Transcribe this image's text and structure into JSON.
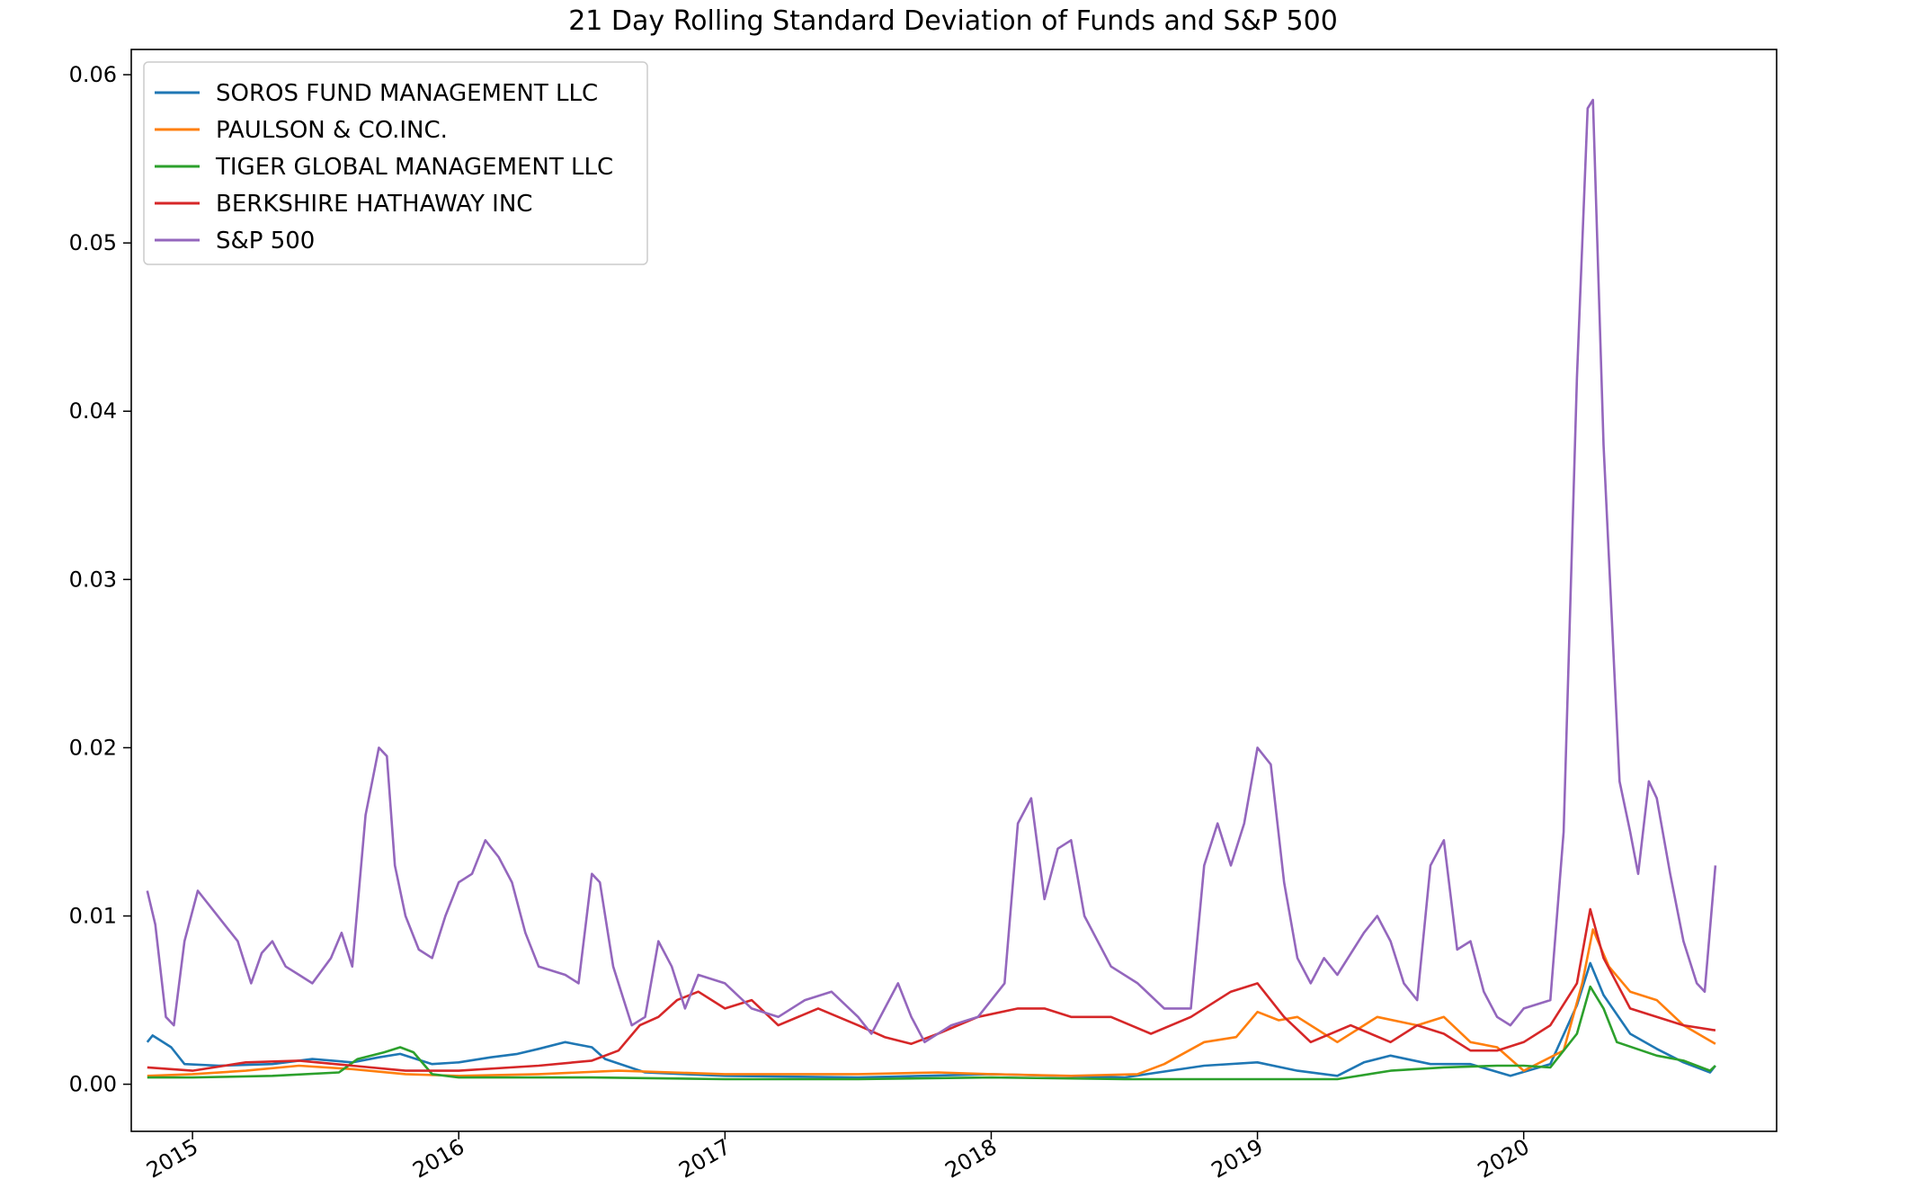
{
  "chart_data": {
    "type": "line",
    "title": "21 Day Rolling Standard Deviation of Funds and S&P 500",
    "xlabel": "",
    "ylabel": "",
    "x_ticks": [
      "2015",
      "2016",
      "2017",
      "2018",
      "2019",
      "2020"
    ],
    "y_ticks": [
      "0.00",
      "0.01",
      "0.02",
      "0.03",
      "0.04",
      "0.05",
      "0.06"
    ],
    "xlim": [
      2014.77,
      2020.95
    ],
    "ylim": [
      -0.0028,
      0.0615
    ],
    "grid": false,
    "legend_position": "top-left",
    "series": [
      {
        "name": "SOROS FUND MANAGEMENT LLC",
        "color": "#1f77b4",
        "points": [
          [
            2014.83,
            0.0025
          ],
          [
            2014.85,
            0.0029
          ],
          [
            2014.88,
            0.0026
          ],
          [
            2014.92,
            0.0022
          ],
          [
            2014.97,
            0.0012
          ],
          [
            2015.1,
            0.0011
          ],
          [
            2015.3,
            0.0012
          ],
          [
            2015.45,
            0.0015
          ],
          [
            2015.6,
            0.0013
          ],
          [
            2015.7,
            0.0016
          ],
          [
            2015.78,
            0.0018
          ],
          [
            2015.9,
            0.0012
          ],
          [
            2016.0,
            0.0013
          ],
          [
            2016.12,
            0.0016
          ],
          [
            2016.22,
            0.0018
          ],
          [
            2016.3,
            0.0021
          ],
          [
            2016.4,
            0.0025
          ],
          [
            2016.5,
            0.0022
          ],
          [
            2016.55,
            0.0015
          ],
          [
            2016.7,
            0.0007
          ],
          [
            2017.0,
            0.0005
          ],
          [
            2017.5,
            0.0004
          ],
          [
            2018.0,
            0.0006
          ],
          [
            2018.5,
            0.0004
          ],
          [
            2018.8,
            0.0011
          ],
          [
            2019.0,
            0.0013
          ],
          [
            2019.15,
            0.0008
          ],
          [
            2019.3,
            0.0005
          ],
          [
            2019.4,
            0.0013
          ],
          [
            2019.5,
            0.0017
          ],
          [
            2019.65,
            0.0012
          ],
          [
            2019.8,
            0.0012
          ],
          [
            2019.95,
            0.0005
          ],
          [
            2020.1,
            0.0012
          ],
          [
            2020.2,
            0.0047
          ],
          [
            2020.25,
            0.0072
          ],
          [
            2020.3,
            0.0053
          ],
          [
            2020.4,
            0.003
          ],
          [
            2020.5,
            0.0021
          ],
          [
            2020.6,
            0.0013
          ],
          [
            2020.7,
            0.0007
          ],
          [
            2020.72,
            0.0011
          ]
        ]
      },
      {
        "name": "PAULSON & CO.INC.",
        "color": "#ff7f0e",
        "points": [
          [
            2014.83,
            0.0005
          ],
          [
            2015.0,
            0.0006
          ],
          [
            2015.2,
            0.0008
          ],
          [
            2015.4,
            0.0011
          ],
          [
            2015.6,
            0.0009
          ],
          [
            2015.8,
            0.0006
          ],
          [
            2016.0,
            0.0005
          ],
          [
            2016.3,
            0.0006
          ],
          [
            2016.6,
            0.0008
          ],
          [
            2017.0,
            0.0006
          ],
          [
            2017.5,
            0.0006
          ],
          [
            2017.8,
            0.0007
          ],
          [
            2018.0,
            0.0006
          ],
          [
            2018.3,
            0.0005
          ],
          [
            2018.55,
            0.0006
          ],
          [
            2018.65,
            0.0012
          ],
          [
            2018.8,
            0.0025
          ],
          [
            2018.92,
            0.0028
          ],
          [
            2019.0,
            0.0043
          ],
          [
            2019.08,
            0.0038
          ],
          [
            2019.15,
            0.004
          ],
          [
            2019.3,
            0.0025
          ],
          [
            2019.45,
            0.004
          ],
          [
            2019.6,
            0.0035
          ],
          [
            2019.7,
            0.004
          ],
          [
            2019.8,
            0.0025
          ],
          [
            2019.9,
            0.0022
          ],
          [
            2020.0,
            0.0008
          ],
          [
            2020.15,
            0.002
          ],
          [
            2020.22,
            0.006
          ],
          [
            2020.26,
            0.0092
          ],
          [
            2020.32,
            0.007
          ],
          [
            2020.4,
            0.0055
          ],
          [
            2020.5,
            0.005
          ],
          [
            2020.6,
            0.0035
          ],
          [
            2020.72,
            0.0024
          ]
        ]
      },
      {
        "name": "TIGER GLOBAL MANAGEMENT LLC",
        "color": "#2ca02c",
        "points": [
          [
            2014.83,
            0.0004
          ],
          [
            2015.0,
            0.0004
          ],
          [
            2015.3,
            0.0005
          ],
          [
            2015.55,
            0.0007
          ],
          [
            2015.62,
            0.0015
          ],
          [
            2015.72,
            0.0019
          ],
          [
            2015.78,
            0.0022
          ],
          [
            2015.83,
            0.0019
          ],
          [
            2015.9,
            0.0006
          ],
          [
            2016.0,
            0.0004
          ],
          [
            2016.5,
            0.0004
          ],
          [
            2017.0,
            0.0003
          ],
          [
            2017.5,
            0.0003
          ],
          [
            2018.0,
            0.0004
          ],
          [
            2018.5,
            0.0003
          ],
          [
            2019.0,
            0.0003
          ],
          [
            2019.3,
            0.0003
          ],
          [
            2019.5,
            0.0008
          ],
          [
            2019.7,
            0.001
          ],
          [
            2019.9,
            0.0011
          ],
          [
            2020.0,
            0.0011
          ],
          [
            2020.1,
            0.001
          ],
          [
            2020.2,
            0.003
          ],
          [
            2020.25,
            0.0058
          ],
          [
            2020.3,
            0.0045
          ],
          [
            2020.35,
            0.0025
          ],
          [
            2020.5,
            0.0017
          ],
          [
            2020.6,
            0.0014
          ],
          [
            2020.7,
            0.0008
          ],
          [
            2020.72,
            0.0011
          ]
        ]
      },
      {
        "name": "BERKSHIRE HATHAWAY INC",
        "color": "#d62728",
        "points": [
          [
            2014.83,
            0.001
          ],
          [
            2015.0,
            0.0008
          ],
          [
            2015.2,
            0.0013
          ],
          [
            2015.4,
            0.0014
          ],
          [
            2015.6,
            0.0011
          ],
          [
            2015.8,
            0.0008
          ],
          [
            2016.0,
            0.0008
          ],
          [
            2016.3,
            0.0011
          ],
          [
            2016.5,
            0.0014
          ],
          [
            2016.6,
            0.002
          ],
          [
            2016.68,
            0.0035
          ],
          [
            2016.75,
            0.004
          ],
          [
            2016.82,
            0.005
          ],
          [
            2016.9,
            0.0055
          ],
          [
            2017.0,
            0.0045
          ],
          [
            2017.1,
            0.005
          ],
          [
            2017.2,
            0.0035
          ],
          [
            2017.35,
            0.0045
          ],
          [
            2017.5,
            0.0035
          ],
          [
            2017.6,
            0.0028
          ],
          [
            2017.7,
            0.0024
          ],
          [
            2017.8,
            0.003
          ],
          [
            2017.95,
            0.004
          ],
          [
            2018.1,
            0.0045
          ],
          [
            2018.2,
            0.0045
          ],
          [
            2018.3,
            0.004
          ],
          [
            2018.45,
            0.004
          ],
          [
            2018.6,
            0.003
          ],
          [
            2018.75,
            0.004
          ],
          [
            2018.9,
            0.0055
          ],
          [
            2019.0,
            0.006
          ],
          [
            2019.1,
            0.004
          ],
          [
            2019.2,
            0.0025
          ],
          [
            2019.35,
            0.0035
          ],
          [
            2019.5,
            0.0025
          ],
          [
            2019.6,
            0.0035
          ],
          [
            2019.7,
            0.003
          ],
          [
            2019.8,
            0.002
          ],
          [
            2019.9,
            0.002
          ],
          [
            2020.0,
            0.0025
          ],
          [
            2020.1,
            0.0035
          ],
          [
            2020.2,
            0.006
          ],
          [
            2020.25,
            0.0104
          ],
          [
            2020.3,
            0.0075
          ],
          [
            2020.4,
            0.0045
          ],
          [
            2020.5,
            0.004
          ],
          [
            2020.6,
            0.0035
          ],
          [
            2020.72,
            0.0032
          ]
        ]
      },
      {
        "name": "S&P 500",
        "color": "#9467bd",
        "points": [
          [
            2014.83,
            0.0115
          ],
          [
            2014.86,
            0.0095
          ],
          [
            2014.9,
            0.004
          ],
          [
            2014.93,
            0.0035
          ],
          [
            2014.97,
            0.0085
          ],
          [
            2015.02,
            0.0115
          ],
          [
            2015.07,
            0.0105
          ],
          [
            2015.12,
            0.0095
          ],
          [
            2015.17,
            0.0085
          ],
          [
            2015.22,
            0.006
          ],
          [
            2015.26,
            0.0078
          ],
          [
            2015.3,
            0.0085
          ],
          [
            2015.35,
            0.007
          ],
          [
            2015.4,
            0.0065
          ],
          [
            2015.45,
            0.006
          ],
          [
            2015.52,
            0.0075
          ],
          [
            2015.56,
            0.009
          ],
          [
            2015.6,
            0.007
          ],
          [
            2015.65,
            0.016
          ],
          [
            2015.7,
            0.02
          ],
          [
            2015.73,
            0.0195
          ],
          [
            2015.76,
            0.013
          ],
          [
            2015.8,
            0.01
          ],
          [
            2015.85,
            0.008
          ],
          [
            2015.9,
            0.0075
          ],
          [
            2015.95,
            0.01
          ],
          [
            2016.0,
            0.012
          ],
          [
            2016.05,
            0.0125
          ],
          [
            2016.1,
            0.0145
          ],
          [
            2016.15,
            0.0135
          ],
          [
            2016.2,
            0.012
          ],
          [
            2016.25,
            0.009
          ],
          [
            2016.3,
            0.007
          ],
          [
            2016.4,
            0.0065
          ],
          [
            2016.45,
            0.006
          ],
          [
            2016.5,
            0.0125
          ],
          [
            2016.53,
            0.012
          ],
          [
            2016.58,
            0.007
          ],
          [
            2016.62,
            0.005
          ],
          [
            2016.65,
            0.0035
          ],
          [
            2016.7,
            0.004
          ],
          [
            2016.75,
            0.0085
          ],
          [
            2016.8,
            0.007
          ],
          [
            2016.85,
            0.0045
          ],
          [
            2016.9,
            0.0065
          ],
          [
            2017.0,
            0.006
          ],
          [
            2017.1,
            0.0045
          ],
          [
            2017.2,
            0.004
          ],
          [
            2017.3,
            0.005
          ],
          [
            2017.4,
            0.0055
          ],
          [
            2017.5,
            0.004
          ],
          [
            2017.55,
            0.003
          ],
          [
            2017.6,
            0.0045
          ],
          [
            2017.65,
            0.006
          ],
          [
            2017.7,
            0.004
          ],
          [
            2017.75,
            0.0025
          ],
          [
            2017.85,
            0.0035
          ],
          [
            2017.95,
            0.004
          ],
          [
            2018.05,
            0.006
          ],
          [
            2018.1,
            0.0155
          ],
          [
            2018.15,
            0.017
          ],
          [
            2018.2,
            0.011
          ],
          [
            2018.25,
            0.014
          ],
          [
            2018.3,
            0.0145
          ],
          [
            2018.35,
            0.01
          ],
          [
            2018.45,
            0.007
          ],
          [
            2018.55,
            0.006
          ],
          [
            2018.65,
            0.0045
          ],
          [
            2018.75,
            0.0045
          ],
          [
            2018.8,
            0.013
          ],
          [
            2018.85,
            0.0155
          ],
          [
            2018.9,
            0.013
          ],
          [
            2018.95,
            0.0155
          ],
          [
            2019.0,
            0.02
          ],
          [
            2019.05,
            0.019
          ],
          [
            2019.1,
            0.012
          ],
          [
            2019.15,
            0.0075
          ],
          [
            2019.2,
            0.006
          ],
          [
            2019.25,
            0.0075
          ],
          [
            2019.3,
            0.0065
          ],
          [
            2019.4,
            0.009
          ],
          [
            2019.45,
            0.01
          ],
          [
            2019.5,
            0.0085
          ],
          [
            2019.55,
            0.006
          ],
          [
            2019.6,
            0.005
          ],
          [
            2019.65,
            0.013
          ],
          [
            2019.7,
            0.0145
          ],
          [
            2019.75,
            0.008
          ],
          [
            2019.8,
            0.0085
          ],
          [
            2019.85,
            0.0055
          ],
          [
            2019.9,
            0.004
          ],
          [
            2019.95,
            0.0035
          ],
          [
            2020.0,
            0.0045
          ],
          [
            2020.1,
            0.005
          ],
          [
            2020.15,
            0.015
          ],
          [
            2020.2,
            0.042
          ],
          [
            2020.24,
            0.058
          ],
          [
            2020.26,
            0.0585
          ],
          [
            2020.3,
            0.038
          ],
          [
            2020.33,
            0.028
          ],
          [
            2020.36,
            0.018
          ],
          [
            2020.4,
            0.015
          ],
          [
            2020.43,
            0.0125
          ],
          [
            2020.47,
            0.018
          ],
          [
            2020.5,
            0.017
          ],
          [
            2020.55,
            0.0125
          ],
          [
            2020.6,
            0.0085
          ],
          [
            2020.65,
            0.006
          ],
          [
            2020.68,
            0.0055
          ],
          [
            2020.72,
            0.013
          ]
        ]
      }
    ]
  }
}
